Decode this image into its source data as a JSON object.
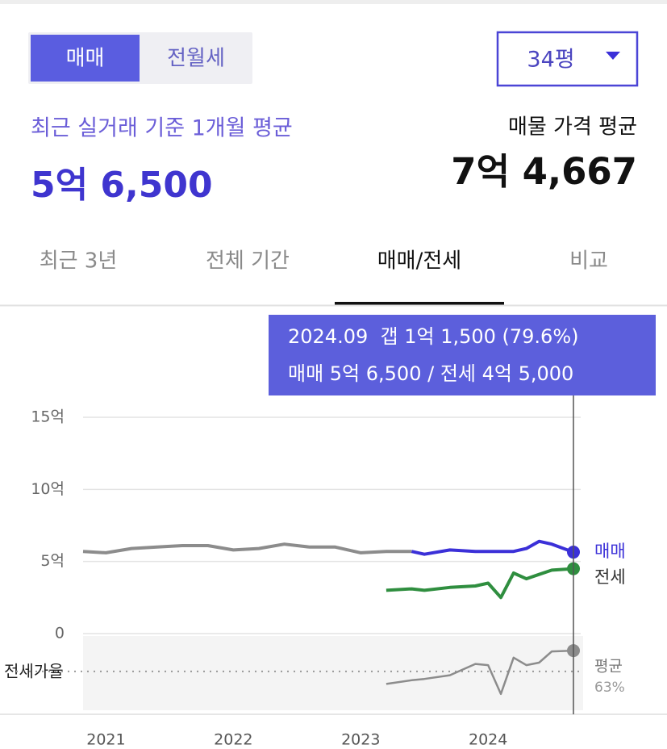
{
  "tabs": {
    "items": [
      "매매",
      "전월세"
    ],
    "selected": 0
  },
  "size_select": {
    "label": "34평"
  },
  "summary": {
    "recent_label": "최근 실거래 기준 1개월 평균",
    "recent_value": "5억 6,500",
    "listing_label": "매물 가격 평균",
    "listing_value": "7억 4,667"
  },
  "period_tabs": {
    "items": [
      "최근 3년",
      "전체 기간",
      "매매/전세",
      "비교"
    ],
    "selected": 2
  },
  "tooltip": {
    "lines": [
      "2024.09  갭 1억 1,500 (79.6%)",
      "매매 5억 6,500 / 전세 4억 5,000"
    ]
  },
  "chart_data": [
    {
      "type": "line",
      "x": [
        2020.82,
        2021.0,
        2021.2,
        2021.4,
        2021.6,
        2021.8,
        2022.0,
        2022.2,
        2022.4,
        2022.6,
        2022.8,
        2023.0,
        2023.2,
        2023.4,
        2023.5,
        2023.7,
        2023.9,
        2024.0,
        2024.1,
        2024.2,
        2024.3,
        2024.4,
        2024.5,
        2024.67
      ],
      "xlim": [
        2020.82,
        2024.67
      ],
      "xticks": [
        2021,
        2022,
        2023,
        2024
      ],
      "ylim": [
        0,
        15
      ],
      "yticks": [
        0,
        {
          "value": 5,
          "label": "5억"
        },
        {
          "value": 10,
          "label": "10억"
        },
        {
          "value": 15,
          "label": "15억"
        }
      ],
      "grid": true,
      "series": [
        {
          "color": "#8c8c8c",
          "values": [
            5.7,
            5.6,
            5.9,
            6.0,
            6.1,
            6.1,
            5.8,
            5.9,
            6.2,
            6.0,
            6.0,
            5.6,
            5.7,
            5.7,
            null,
            null,
            null,
            null,
            null,
            null,
            null,
            null,
            null,
            null
          ]
        },
        {
          "name": "매매",
          "color": "#3b30d8",
          "values": [
            null,
            null,
            null,
            null,
            null,
            null,
            null,
            null,
            null,
            null,
            null,
            null,
            null,
            5.7,
            5.5,
            5.8,
            5.7,
            5.7,
            5.7,
            5.7,
            5.9,
            6.4,
            6.2,
            5.65
          ]
        },
        {
          "name": "전세",
          "color": "#2f8e3f",
          "values": [
            null,
            null,
            null,
            null,
            null,
            null,
            null,
            null,
            null,
            null,
            null,
            null,
            3.0,
            3.1,
            3.0,
            3.2,
            3.3,
            3.5,
            2.5,
            4.2,
            3.8,
            4.1,
            4.4,
            4.5
          ]
        }
      ]
    },
    {
      "type": "line",
      "label": "전세가율",
      "x": [
        2023.2,
        2023.4,
        2023.5,
        2023.7,
        2023.9,
        2024.0,
        2024.1,
        2024.2,
        2024.3,
        2024.4,
        2024.5,
        2024.67
      ],
      "xlim": [
        2020.82,
        2024.67
      ],
      "ylim": [
        32,
        90
      ],
      "series": [
        {
          "color": "#8c8c8c",
          "values": [
            53,
            56,
            57,
            60,
            69,
            68,
            45,
            74,
            68,
            70,
            79,
            79.6
          ]
        }
      ],
      "average": {
        "label": "평균",
        "value": 63,
        "value_label": "63%"
      }
    }
  ]
}
